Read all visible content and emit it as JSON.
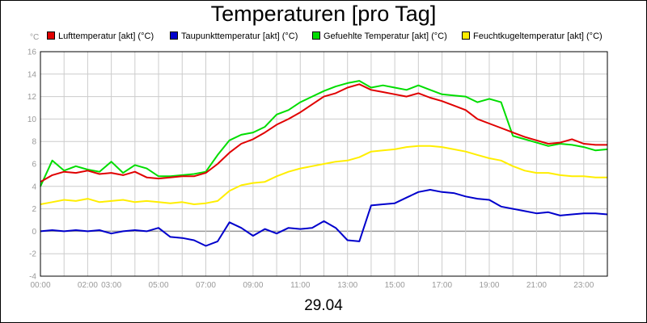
{
  "title": "Temperaturen [pro Tag]",
  "unit_label": "°C",
  "date_label": "29.04",
  "chart_data": {
    "type": "line",
    "title": "Temperaturen [pro Tag]",
    "xlabel": "29.04",
    "ylabel": "°C",
    "ylim": [
      -4,
      16
    ],
    "xlim": [
      0,
      24
    ],
    "grid": true,
    "legend_position": "top",
    "y_ticks": [
      "16",
      "14",
      "12",
      "10",
      "8",
      "6",
      "4",
      "2",
      "0",
      "-2",
      "-4"
    ],
    "x_ticks": [
      {
        "h": 0,
        "label": "00:00"
      },
      {
        "h": 2,
        "label": "02:00"
      },
      {
        "h": 3,
        "label": "03:00"
      },
      {
        "h": 5,
        "label": "05:00"
      },
      {
        "h": 7,
        "label": "07:00"
      },
      {
        "h": 9,
        "label": "09:00"
      },
      {
        "h": 11,
        "label": "11:00"
      },
      {
        "h": 13,
        "label": "13:00"
      },
      {
        "h": 15,
        "label": "15:00"
      },
      {
        "h": 17,
        "label": "17:00"
      },
      {
        "h": 19,
        "label": "19:00"
      },
      {
        "h": 21,
        "label": "21:00"
      },
      {
        "h": 23,
        "label": "23:00"
      }
    ],
    "x": [
      0,
      0.5,
      1,
      1.5,
      2,
      2.5,
      3,
      3.5,
      4,
      4.5,
      5,
      5.5,
      6,
      6.5,
      7,
      7.5,
      8,
      8.5,
      9,
      9.5,
      10,
      10.5,
      11,
      11.5,
      12,
      12.5,
      13,
      13.5,
      14,
      14.5,
      15,
      15.5,
      16,
      16.5,
      17,
      17.5,
      18,
      18.5,
      19,
      19.5,
      20,
      20.5,
      21,
      21.5,
      22,
      22.5,
      23,
      23.5,
      24
    ],
    "series": [
      {
        "name": "Lufttemperatur [akt] (°C)",
        "color": "#e00000",
        "values": [
          4.4,
          5.0,
          5.3,
          5.2,
          5.4,
          5.1,
          5.2,
          5.0,
          5.3,
          4.8,
          4.7,
          4.8,
          4.9,
          4.9,
          5.2,
          6.0,
          7.0,
          7.8,
          8.2,
          8.8,
          9.5,
          10.0,
          10.6,
          11.3,
          12.0,
          12.3,
          12.8,
          13.1,
          12.6,
          12.4,
          12.2,
          12.0,
          12.3,
          11.9,
          11.6,
          11.2,
          10.8,
          10.0,
          9.6,
          9.2,
          8.8,
          8.4,
          8.1,
          7.8,
          7.9,
          8.2,
          7.8,
          7.7,
          7.7
        ]
      },
      {
        "name": "Taupunkttemperatur [akt] (°C)",
        "color": "#0000cc",
        "values": [
          0.0,
          0.1,
          0.0,
          0.1,
          0.0,
          0.1,
          -0.2,
          0.0,
          0.1,
          0.0,
          0.3,
          -0.5,
          -0.6,
          -0.8,
          -1.3,
          -0.9,
          0.8,
          0.3,
          -0.4,
          0.2,
          -0.2,
          0.3,
          0.2,
          0.3,
          0.9,
          0.3,
          -0.8,
          -0.9,
          2.3,
          2.4,
          2.5,
          3.0,
          3.5,
          3.7,
          3.5,
          3.4,
          3.1,
          2.9,
          2.8,
          2.2,
          2.0,
          1.8,
          1.6,
          1.7,
          1.4,
          1.5,
          1.6,
          1.6,
          1.5
        ]
      },
      {
        "name": "Gefuehlte Temperatur [akt] (°C)",
        "color": "#00dd00",
        "values": [
          4.0,
          6.3,
          5.4,
          5.8,
          5.5,
          5.3,
          6.2,
          5.2,
          5.9,
          5.6,
          4.9,
          4.9,
          5.0,
          5.1,
          5.3,
          6.8,
          8.1,
          8.6,
          8.8,
          9.3,
          10.4,
          10.8,
          11.5,
          12.0,
          12.5,
          12.9,
          13.2,
          13.4,
          12.8,
          13.0,
          12.8,
          12.6,
          13.0,
          12.6,
          12.2,
          12.1,
          12.0,
          11.5,
          11.8,
          11.5,
          8.5,
          8.2,
          7.9,
          7.6,
          7.8,
          7.7,
          7.5,
          7.2,
          7.3
        ]
      },
      {
        "name": "Feuchtkugeltemperatur [akt] (°C)",
        "color": "#ffee00",
        "values": [
          2.4,
          2.6,
          2.8,
          2.7,
          2.9,
          2.6,
          2.7,
          2.8,
          2.6,
          2.7,
          2.6,
          2.5,
          2.6,
          2.4,
          2.5,
          2.7,
          3.6,
          4.1,
          4.3,
          4.4,
          4.9,
          5.3,
          5.6,
          5.8,
          6.0,
          6.2,
          6.3,
          6.6,
          7.1,
          7.2,
          7.3,
          7.5,
          7.6,
          7.6,
          7.5,
          7.3,
          7.1,
          6.8,
          6.5,
          6.3,
          5.8,
          5.4,
          5.2,
          5.2,
          5.0,
          4.9,
          4.9,
          4.8,
          4.8
        ]
      }
    ]
  }
}
